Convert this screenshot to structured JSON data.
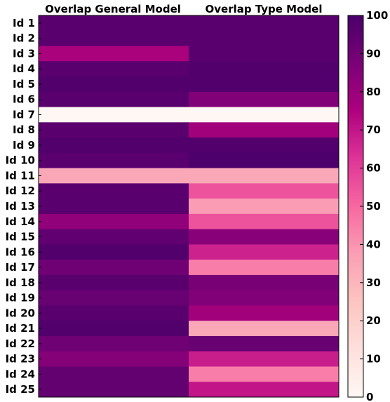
{
  "chart_data": {
    "type": "heatmap",
    "colormap": "RdPu",
    "columns": [
      "Overlap General Model",
      "Overlap Type Model"
    ],
    "rows": [
      "Id 1",
      "Id 2",
      "Id 3",
      "Id 4",
      "Id 5",
      "Id 6",
      "Id 7",
      "Id 8",
      "Id 9",
      "Id 10",
      "Id 11",
      "Id 12",
      "Id 13",
      "Id 14",
      "Id 15",
      "Id 16",
      "Id 17",
      "Id 18",
      "Id 19",
      "Id 20",
      "Id 21",
      "Id 22",
      "Id 23",
      "Id 24",
      "Id 25"
    ],
    "values": [
      [
        96,
        96
      ],
      [
        96,
        96
      ],
      [
        76,
        96
      ],
      [
        96,
        98
      ],
      [
        98,
        98
      ],
      [
        96,
        86
      ],
      [
        0,
        0
      ],
      [
        96,
        78
      ],
      [
        98,
        98
      ],
      [
        96,
        99
      ],
      [
        35,
        35
      ],
      [
        96,
        55
      ],
      [
        96,
        38
      ],
      [
        82,
        55
      ],
      [
        94,
        84
      ],
      [
        98,
        67
      ],
      [
        90,
        45
      ],
      [
        96,
        88
      ],
      [
        92,
        86
      ],
      [
        96,
        78
      ],
      [
        98,
        35
      ],
      [
        90,
        92
      ],
      [
        85,
        68
      ],
      [
        93,
        45
      ],
      [
        93,
        70
      ]
    ],
    "colorbar": {
      "min": 0,
      "max": 100,
      "ticks": [
        0,
        10,
        20,
        30,
        40,
        50,
        60,
        70,
        80,
        90,
        100
      ]
    }
  }
}
